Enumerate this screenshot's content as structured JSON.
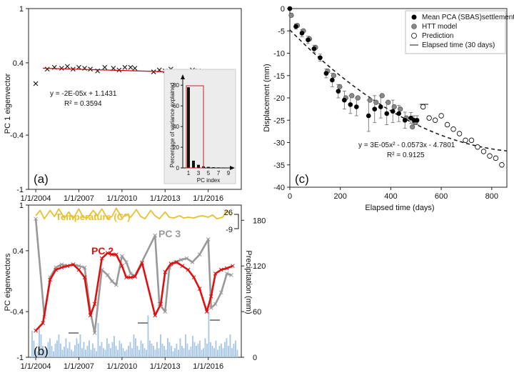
{
  "chart_data": [
    {
      "type": "scatter",
      "panel_label": "(a)",
      "ylabel": "PC 1 eigenvector",
      "ylim": [
        -1,
        1
      ],
      "yticks": [
        "1",
        "0.4",
        "-0.4",
        "-1"
      ],
      "xticks": [
        "1/1/2004",
        "1/1/2007",
        "1/1/2010",
        "1/1/2013",
        "1/1/2016"
      ],
      "series": [
        {
          "marker": "x",
          "color": "#111111",
          "points": [
            [
              2004.0,
              0.17
            ],
            [
              2004.8,
              0.33
            ],
            [
              2005.3,
              0.35
            ],
            [
              2005.8,
              0.34
            ],
            [
              2006.2,
              0.36
            ],
            [
              2006.6,
              0.33
            ],
            [
              2007.0,
              0.35
            ],
            [
              2007.4,
              0.34
            ],
            [
              2007.8,
              0.33
            ],
            [
              2008.3,
              0.31
            ],
            [
              2008.8,
              0.35
            ],
            [
              2009.4,
              0.34
            ],
            [
              2009.8,
              0.32
            ],
            [
              2010.2,
              0.35
            ],
            [
              2010.6,
              0.35
            ],
            [
              2010.9,
              0.34
            ],
            [
              2012.2,
              0.3
            ],
            [
              2012.6,
              0.32
            ],
            [
              2013.0,
              0.31
            ],
            [
              2013.4,
              0.33
            ],
            [
              2013.7,
              0.3
            ],
            [
              2014.1,
              0.3
            ],
            [
              2014.5,
              0.29
            ],
            [
              2014.9,
              0.32
            ],
            [
              2015.3,
              0.31
            ],
            [
              2015.7,
              0.29
            ],
            [
              2016.1,
              0.28
            ],
            [
              2016.5,
              0.28
            ],
            [
              2016.9,
              0.28
            ],
            [
              2017.3,
              0.28
            ],
            [
              2017.7,
              0.28
            ]
          ]
        },
        {
          "type": "line",
          "color": "#cc0000",
          "x": [
            2004.5,
            2017.8
          ],
          "y": [
            0.34,
            0.28
          ]
        }
      ],
      "equation": "y = -2E-05x + 1.1431",
      "r2": "R² = 0.3594",
      "inset": {
        "type": "bar",
        "ylabel": "Percentage of variance explained",
        "xlabel": "PC index",
        "yticks": [
          "0",
          "20",
          "40",
          "60",
          "80"
        ],
        "xticks": [
          "1",
          "3",
          "5",
          "7",
          "9"
        ],
        "ylim": [
          0,
          85
        ],
        "values": [
          78,
          7,
          3,
          1.5,
          1,
          0.7,
          0.5,
          0.4,
          0.3
        ]
      }
    },
    {
      "type": "line",
      "panel_label": "(b)",
      "ylabel": "PC eigenvectors",
      "ylim": [
        -1,
        1
      ],
      "yticks": [
        "1",
        "0.4",
        "-0.4",
        "-1"
      ],
      "xticks": [
        "1/1/2004",
        "1/1/2007",
        "1/1/2010",
        "1/1/2013",
        "1/1/2016"
      ],
      "y2label": "Precipitation (mm)",
      "y2ticks": [
        "180",
        "120",
        "60",
        "0"
      ],
      "temperature_scale": [
        "26",
        "-9"
      ],
      "series": [
        {
          "name": "Temperature (C°)",
          "color": "#e8c030",
          "x": [
            2004,
            2004.3,
            2004.6,
            2005.0,
            2005.3,
            2005.6,
            2006.0,
            2006.3,
            2006.6,
            2007.0,
            2007.3,
            2007.6,
            2008.0,
            2008.3,
            2008.6,
            2009.0,
            2009.3,
            2009.6,
            2010.0,
            2010.3,
            2010.6,
            2011.0,
            2011.3,
            2011.6,
            2012.0,
            2012.3,
            2012.6,
            2013.0,
            2013.3,
            2013.6,
            2014.0,
            2014.3,
            2014.6,
            2015.0,
            2015.3,
            2015.6,
            2016.0,
            2016.3,
            2016.6,
            2017.0,
            2017.3,
            2017.6
          ],
          "y": [
            0.86,
            0.93,
            0.82,
            0.93,
            0.85,
            0.95,
            0.83,
            0.91,
            0.82,
            0.95,
            0.84,
            0.83,
            0.93,
            0.86,
            0.95,
            0.82,
            0.85,
            0.96,
            0.83,
            0.88,
            0.84,
            0.94,
            0.85,
            0.82,
            0.93,
            0.86,
            0.82,
            0.91,
            0.84,
            0.83,
            0.86,
            0.83,
            0.84,
            0.83,
            0.85,
            0.86,
            0.84,
            0.87,
            0.82,
            0.84,
            0.93,
            0.86
          ]
        },
        {
          "name": "PC 3",
          "color": "#999999",
          "x": [
            2004,
            2004.6,
            2005.0,
            2005.4,
            2005.8,
            2006.2,
            2006.6,
            2007.0,
            2007.4,
            2007.8,
            2008.1,
            2008.6,
            2009.0,
            2009.3,
            2009.6,
            2010.0,
            2010.3,
            2010.6,
            2010.9,
            2012.3,
            2012.6,
            2013.0,
            2013.3,
            2013.7,
            2014.1,
            2014.5,
            2014.9,
            2015.4,
            2016.0,
            2016.2,
            2016.5,
            2016.9,
            2017.3,
            2017.6
          ],
          "y": [
            0.82,
            -0.47,
            0.05,
            0.18,
            0.22,
            0.2,
            0.22,
            0.2,
            0.18,
            -0.4,
            -0.68,
            0.15,
            0.08,
            0.0,
            -0.05,
            0.33,
            0.25,
            0.1,
            0.07,
            0.6,
            -0.3,
            -0.4,
            0.18,
            0.25,
            0.28,
            0.3,
            0.25,
            0.35,
            0.55,
            -0.35,
            -0.3,
            -0.15,
            0.1,
            0.08
          ]
        },
        {
          "name": "PC 2",
          "color": "#dd1111",
          "x": [
            2004,
            2004.5,
            2005.0,
            2005.4,
            2005.8,
            2006.2,
            2006.6,
            2007.0,
            2007.4,
            2007.8,
            2008.1,
            2008.6,
            2009.0,
            2009.3,
            2009.6,
            2010.0,
            2010.3,
            2010.6,
            2010.9,
            2011.4,
            2012.3,
            2012.7,
            2013.0,
            2013.4,
            2013.8,
            2014.2,
            2014.6,
            2015.0,
            2015.4,
            2015.9,
            2016.2,
            2016.5,
            2016.9,
            2017.3,
            2017.7
          ],
          "y": [
            -0.65,
            -0.55,
            0.02,
            0.15,
            0.18,
            0.2,
            0.22,
            0.15,
            0.05,
            -0.45,
            -0.3,
            0.3,
            0.37,
            0.35,
            0.35,
            0.2,
            0.05,
            0.05,
            0.06,
            0.24,
            -0.45,
            -0.3,
            0.12,
            0.23,
            0.25,
            0.2,
            0.15,
            0.05,
            -0.1,
            -0.4,
            -0.2,
            0.1,
            0.15,
            0.17,
            0.2
          ]
        }
      ],
      "precipitation_mm": [
        35,
        22,
        12,
        8,
        40,
        30,
        15,
        10,
        12,
        20,
        25,
        15,
        8,
        18,
        22,
        30,
        18,
        10,
        14,
        25,
        12,
        20,
        10,
        8,
        16,
        25,
        18,
        30,
        12,
        20,
        10,
        15,
        22,
        10,
        18,
        12,
        8,
        45,
        15,
        20,
        12,
        10,
        25,
        18,
        12,
        20,
        28,
        15,
        10,
        22,
        18,
        12,
        8,
        10,
        15,
        20,
        12,
        30,
        25,
        15,
        10,
        22,
        18,
        12,
        10,
        55,
        22,
        18,
        15,
        10,
        20,
        12,
        30,
        18,
        15,
        10,
        25,
        20,
        15,
        8,
        12,
        18,
        10,
        25,
        15,
        12,
        30,
        18,
        10,
        14,
        28,
        20,
        15,
        18,
        22,
        10,
        12,
        25,
        18,
        60,
        20,
        15,
        12,
        22,
        10,
        15,
        18,
        12,
        20,
        25,
        15,
        30,
        12,
        18,
        22,
        10
      ]
    },
    {
      "type": "scatter",
      "panel_label": "(c)",
      "xlabel": "Elapsed time (days)",
      "ylabel": "Displacement (mm)",
      "xlim": [
        0,
        860
      ],
      "ylim": [
        -40,
        0
      ],
      "xticks": [
        "0",
        "200",
        "400",
        "600",
        "800"
      ],
      "yticks": [
        "0",
        "-5",
        "-10",
        "-15",
        "-20",
        "-25",
        "-30",
        "-35",
        "-40"
      ],
      "legend_position": "top-right",
      "series": [
        {
          "name": "Mean PCA (SBAS)settlement",
          "marker": "filled-circle",
          "color": "#000000",
          "x": [
            0,
            24,
            48,
            72,
            96,
            120,
            144,
            168,
            192,
            216,
            240,
            264,
            312,
            336,
            360,
            384,
            408,
            432,
            456,
            480,
            492,
            504
          ],
          "y": [
            0,
            -4,
            -5.5,
            -7,
            -9,
            -11,
            -14.5,
            -16,
            -18.5,
            -20.5,
            -21.5,
            -22,
            -24,
            -22.5,
            -22,
            -23.5,
            -23,
            -23.5,
            -25,
            -24.5,
            -25,
            -25
          ],
          "error": [
            0,
            0.6,
            0.8,
            0.8,
            0.8,
            0.8,
            1,
            1.5,
            1.5,
            2,
            2,
            2,
            3.5,
            3,
            2.5,
            2.5,
            2.5,
            1.8,
            1.8,
            1.2,
            1,
            1
          ]
        },
        {
          "name": "HTT model",
          "marker": "gray-circle",
          "color": "#888888",
          "x": [
            0,
            24,
            48,
            72,
            96,
            144,
            168,
            192,
            216,
            240,
            264,
            312,
            336,
            360,
            384,
            408,
            432,
            456,
            480,
            492
          ],
          "y": [
            -1.5,
            -3.8,
            -5,
            -6.8,
            -8.7,
            -14,
            -15,
            -17.5,
            -20,
            -19.5,
            -20,
            -20.5,
            -21,
            -19.5,
            -21,
            -22,
            -22.5,
            -24.5,
            -26.5,
            -25.5
          ]
        },
        {
          "name": "Prediction",
          "marker": "open-circle",
          "color": "#000000",
          "x": [
            528,
            552,
            576,
            600,
            624,
            648,
            672,
            696,
            720,
            744,
            768,
            792,
            816,
            840
          ],
          "y": [
            -22,
            -24.5,
            -25,
            -24,
            -26,
            -27,
            -28,
            -29.5,
            -29.5,
            -31,
            -32,
            -33,
            -33.5,
            -35
          ]
        },
        {
          "name": "Trend",
          "type": "dashed-line",
          "color": "#000000",
          "coeffs": [
            3e-05,
            -0.0573,
            -4.7801
          ],
          "xrange": [
            0,
            860
          ]
        }
      ],
      "legend_extra": "Elapsed time (30 days)",
      "equation": "y = 3E-05x² - 0.0573x - 4.7801",
      "r2": "R² = 0.9125"
    }
  ]
}
